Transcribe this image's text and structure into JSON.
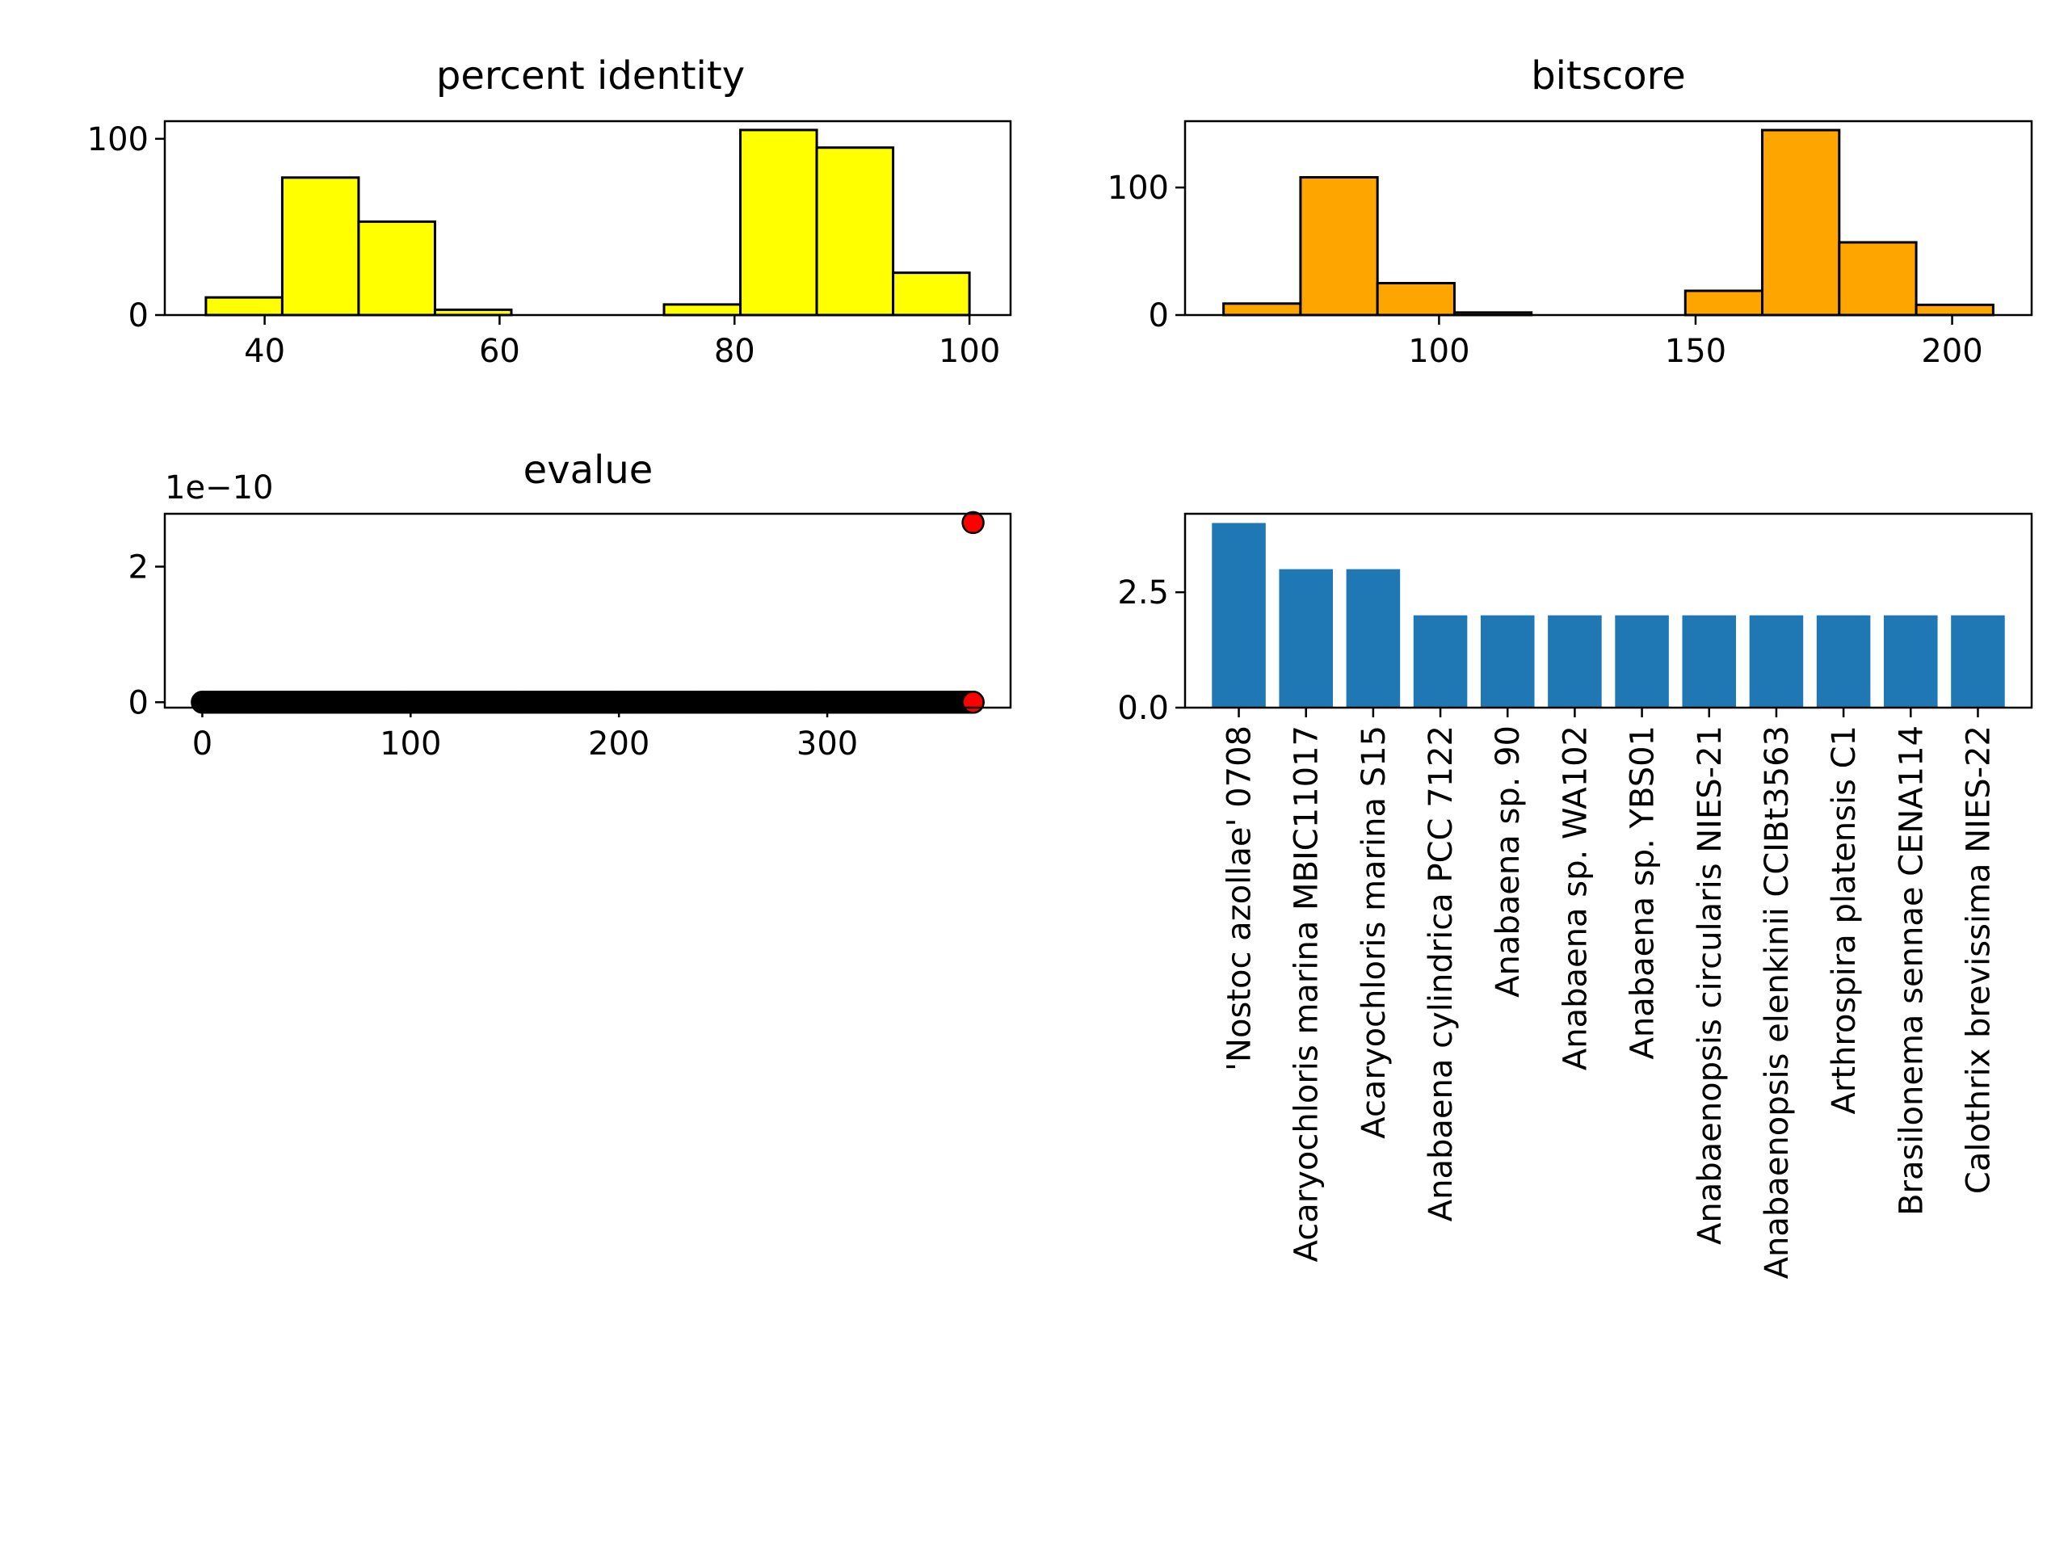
{
  "chart_data": [
    {
      "id": "identity",
      "type": "histogram",
      "title": "percent identity",
      "xlim": [
        31.5,
        103.5
      ],
      "ylim": [
        0,
        110
      ],
      "xticks": [
        40,
        60,
        80,
        100
      ],
      "yticks": [
        0,
        100
      ],
      "color": "#ffff00",
      "bins": [
        {
          "x0": 35.0,
          "x1": 41.5,
          "value": 10
        },
        {
          "x0": 41.5,
          "x1": 48.0,
          "value": 78
        },
        {
          "x0": 48.0,
          "x1": 54.5,
          "value": 53
        },
        {
          "x0": 54.5,
          "x1": 61.0,
          "value": 3
        },
        {
          "x0": 61.0,
          "x1": 67.5,
          "value": 0
        },
        {
          "x0": 67.5,
          "x1": 74.0,
          "value": 0
        },
        {
          "x0": 74.0,
          "x1": 80.5,
          "value": 6
        },
        {
          "x0": 80.5,
          "x1": 87.0,
          "value": 105
        },
        {
          "x0": 87.0,
          "x1": 93.5,
          "value": 95
        },
        {
          "x0": 93.5,
          "x1": 100.0,
          "value": 24
        }
      ]
    },
    {
      "id": "bitscore",
      "type": "histogram",
      "title": "bitscore",
      "xlim": [
        50.5,
        215.5
      ],
      "ylim": [
        0,
        152
      ],
      "xticks": [
        100,
        150,
        200
      ],
      "yticks": [
        0,
        100
      ],
      "color": "#ffa500",
      "bins": [
        {
          "x0": 58.0,
          "x1": 73.0,
          "value": 9
        },
        {
          "x0": 73.0,
          "x1": 88.0,
          "value": 108
        },
        {
          "x0": 88.0,
          "x1": 103.0,
          "value": 25
        },
        {
          "x0": 103.0,
          "x1": 118.0,
          "value": 2
        },
        {
          "x0": 118.0,
          "x1": 133.0,
          "value": 0
        },
        {
          "x0": 133.0,
          "x1": 148.0,
          "value": 0
        },
        {
          "x0": 148.0,
          "x1": 163.0,
          "value": 19
        },
        {
          "x0": 163.0,
          "x1": 178.0,
          "value": 145
        },
        {
          "x0": 178.0,
          "x1": 193.0,
          "value": 57
        },
        {
          "x0": 193.0,
          "x1": 208.0,
          "value": 8
        }
      ]
    },
    {
      "id": "evalue",
      "type": "scatter",
      "title": "evalue",
      "offset_label": "1e−10",
      "xlim": [
        -18,
        388
      ],
      "ylim": [
        -0.08,
        2.78
      ],
      "xticks": [
        0,
        100,
        200,
        300
      ],
      "yticks": [
        0,
        2
      ],
      "point_count": 371,
      "base_value": 0,
      "base_color": "#000000",
      "highlight_color": "#ff0000",
      "highlights": [
        {
          "x": 370,
          "y": 2.65
        },
        {
          "x": 370,
          "y": 0
        }
      ]
    },
    {
      "id": "species",
      "type": "bar",
      "title": "",
      "ylim": [
        0,
        4.2
      ],
      "yticks": [
        0.0,
        2.5
      ],
      "ytick_labels": [
        "0.0",
        "2.5"
      ],
      "color": "#1f77b4",
      "categories": [
        "'Nostoc azollae' 0708",
        "Acaryochloris marina MBIC11017",
        "Acaryochloris marina S15",
        "Anabaena cylindrica PCC 7122",
        "Anabaena sp. 90",
        "Anabaena sp. WA102",
        "Anabaena sp. YBS01",
        "Anabaenopsis circularis NIES-21",
        "Anabaenopsis elenkinii CCIBt3563",
        "Arthrospira platensis C1",
        "Brasilonema sennae CENA114",
        "Calothrix brevissima NIES-22"
      ],
      "values": [
        4,
        3,
        3,
        2,
        2,
        2,
        2,
        2,
        2,
        2,
        2,
        2
      ]
    }
  ]
}
